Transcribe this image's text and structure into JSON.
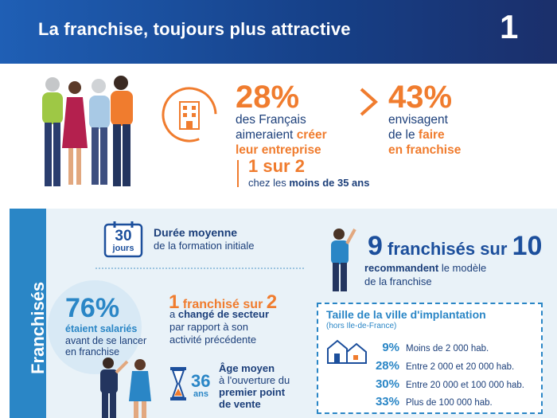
{
  "header": {
    "title": "La franchise, toujours plus attractive",
    "number": "1"
  },
  "top": {
    "stat1": {
      "value": "28%",
      "line1": "des Français",
      "line2_pre": "aimeraient ",
      "line2_hl": "créer",
      "line3_hl": "leur entreprise"
    },
    "stat2": {
      "value": "43%",
      "line1": "envisagent",
      "line2_pre": "de le ",
      "line2_hl": "faire",
      "line3_hl": "en franchise"
    },
    "sub": {
      "value": "1 sur 2",
      "text_pre": "chez les ",
      "text_bold": "moins de 35 ans"
    }
  },
  "panel": {
    "side_label": "Franchisés",
    "duree": {
      "num": "30",
      "unit": "jours",
      "title": "Durée moyenne",
      "sub": "de la formation initiale"
    },
    "recommande": {
      "num1": "9",
      "mid": " franchisés sur ",
      "num2": "10",
      "bold": "recommandent",
      "rest": " le modèle",
      "line2": "de la franchise"
    },
    "salaries": {
      "value": "76%",
      "line1": "étaient salariés",
      "line2": "avant de se lancer",
      "line3": "en franchise"
    },
    "secteur": {
      "num": "1",
      "mid": " franchisé sur ",
      "num2": "2",
      "line1_pre": "a ",
      "line1_bold": "changé de secteur",
      "line2": "par rapport à son",
      "line3": "activité précédente"
    },
    "age": {
      "num": "36",
      "unit": "ans",
      "line1": "Âge moyen",
      "line2": "à l'ouverture du",
      "line3": "premier point",
      "line4": "de vente"
    },
    "ville": {
      "title": "Taille de la ville d'implantation",
      "note": "(hors Ile-de-France)",
      "rows": [
        {
          "pct": "9%",
          "label": "Moins de 2 000 hab."
        },
        {
          "pct": "28%",
          "label": "Entre 2 000 et 20 000 hab."
        },
        {
          "pct": "30%",
          "label": "Entre 20 000 et 100 000 hab."
        },
        {
          "pct": "33%",
          "label": "Plus de 100 000 hab."
        }
      ]
    }
  },
  "colors": {
    "orange": "#f07c2e",
    "blue": "#2a86c6",
    "navy": "#1c3f7a",
    "panel_bg": "#e9f2f8"
  }
}
